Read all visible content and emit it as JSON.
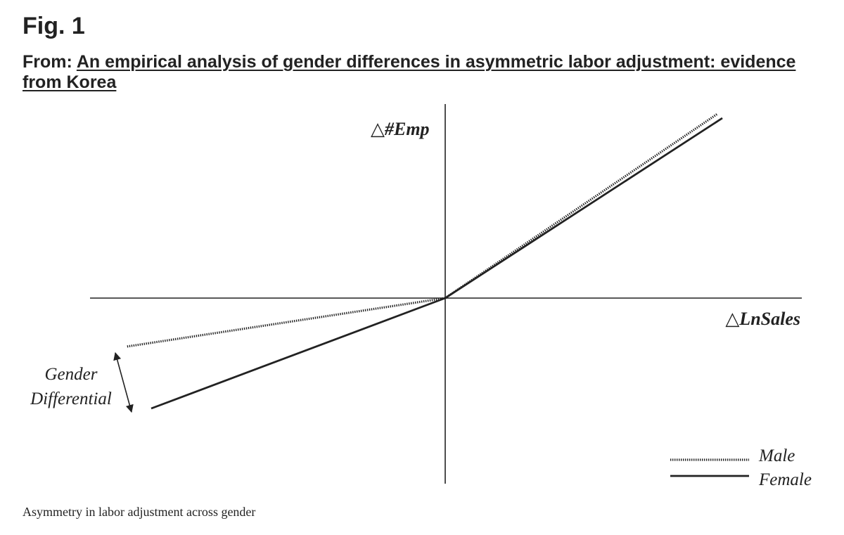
{
  "header": {
    "fig_label": "Fig. 1",
    "from_label": "From:",
    "article_title": "An empirical analysis of gender differences in asymmetric labor adjustment: evidence from Korea"
  },
  "figure": {
    "y_axis_label": "△#Emp",
    "x_axis_label": "△LnSales",
    "annotation": {
      "line1": "Gender",
      "line2": "Differential"
    },
    "legend": {
      "male": "Male",
      "female": "Female"
    }
  },
  "caption": "Asymmetry in labor adjustment across gender"
}
